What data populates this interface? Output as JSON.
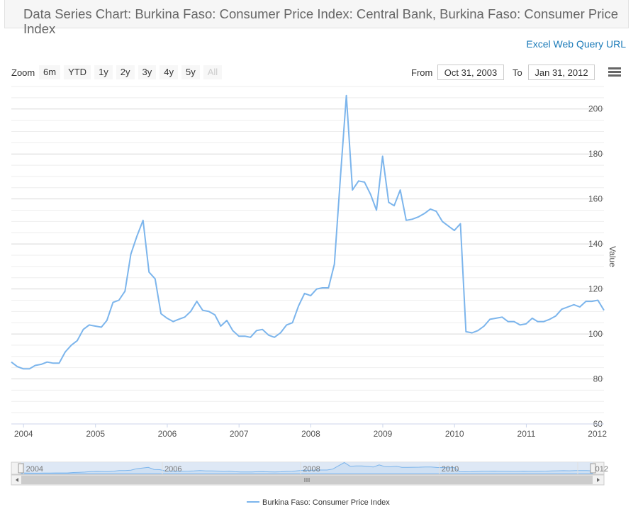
{
  "header": {
    "title": "Data Series Chart: Burkina Faso: Consumer Price Index: Central Bank, Burkina Faso: Consumer Price Index",
    "excel_link": "Excel Web Query URL"
  },
  "toolbar": {
    "zoom_label": "Zoom",
    "zoom_buttons": [
      "6m",
      "YTD",
      "1y",
      "2y",
      "3y",
      "4y",
      "5y",
      "All"
    ],
    "from_label": "From",
    "from_value": "Oct 31, 2003",
    "to_label": "To",
    "to_value": "Jan 31, 2012"
  },
  "colors": {
    "series": "#7cb5ec",
    "grid": "#e6e6e6",
    "navigator_fill": "#dbe7f5"
  },
  "icons": {
    "menu": "hamburger-menu-icon",
    "scroll_left": "left-arrow-icon",
    "scroll_right": "right-arrow-icon",
    "scroll_grip": "grip-icon"
  },
  "chart_data": {
    "type": "line",
    "title": "",
    "xlabel": "",
    "ylabel": "Value",
    "x_range": [
      "2003-10-31",
      "2012-01-31"
    ],
    "ylim": [
      60,
      210
    ],
    "y_ticks": [
      60,
      80,
      100,
      120,
      140,
      160,
      180,
      200
    ],
    "x_tick_labels": [
      "2004",
      "2005",
      "2006",
      "2007",
      "2008",
      "2009",
      "2010",
      "2011",
      "2012"
    ],
    "navigator_labels": [
      "2004",
      "2006",
      "2008",
      "2010",
      "2012"
    ],
    "grid": true,
    "legend_position": "bottom-center",
    "series": [
      {
        "name": "Burkina Faso: Consumer Price Index",
        "x": [
          "2003-10-31",
          "2003-11-30",
          "2003-12-31",
          "2004-01-31",
          "2004-02-29",
          "2004-03-31",
          "2004-04-30",
          "2004-05-31",
          "2004-06-30",
          "2004-07-31",
          "2004-08-31",
          "2004-09-30",
          "2004-10-31",
          "2004-11-30",
          "2004-12-31",
          "2005-01-31",
          "2005-02-28",
          "2005-03-31",
          "2005-04-30",
          "2005-05-31",
          "2005-06-30",
          "2005-07-31",
          "2005-08-31",
          "2005-09-30",
          "2005-10-31",
          "2005-11-30",
          "2005-12-31",
          "2006-01-31",
          "2006-02-28",
          "2006-03-31",
          "2006-04-30",
          "2006-05-31",
          "2006-06-30",
          "2006-07-31",
          "2006-08-31",
          "2006-09-30",
          "2006-10-31",
          "2006-11-30",
          "2006-12-31",
          "2007-01-31",
          "2007-02-28",
          "2007-03-31",
          "2007-04-30",
          "2007-05-31",
          "2007-06-30",
          "2007-07-31",
          "2007-08-31",
          "2007-09-30",
          "2007-10-31",
          "2007-11-30",
          "2007-12-31",
          "2008-01-31",
          "2008-02-29",
          "2008-03-31",
          "2008-04-30",
          "2008-05-31",
          "2008-06-30",
          "2008-07-31",
          "2008-08-31",
          "2008-09-30",
          "2008-10-31",
          "2008-11-30",
          "2008-12-31",
          "2009-01-31",
          "2009-02-28",
          "2009-03-31",
          "2009-04-30",
          "2009-05-31",
          "2009-06-30",
          "2009-07-31",
          "2009-08-31",
          "2009-09-30",
          "2009-10-31",
          "2009-11-30",
          "2009-12-31",
          "2010-01-31",
          "2010-02-28",
          "2010-03-31",
          "2010-04-30",
          "2010-05-31",
          "2010-06-30",
          "2010-07-31",
          "2010-08-31",
          "2010-09-30",
          "2010-10-31",
          "2010-11-30",
          "2010-12-31",
          "2011-01-31",
          "2011-02-28",
          "2011-03-31",
          "2011-04-30",
          "2011-05-31",
          "2011-06-30",
          "2011-07-31",
          "2011-08-31",
          "2011-09-30",
          "2011-10-31",
          "2011-11-30",
          "2011-12-31",
          "2012-01-31"
        ],
        "values": [
          87.5,
          85.5,
          84.5,
          84.5,
          86.0,
          86.5,
          87.5,
          87.0,
          87.0,
          92.0,
          95.0,
          97.0,
          102.0,
          104.0,
          103.5,
          103.0,
          106.0,
          114.0,
          115.0,
          119.0,
          135.5,
          143.5,
          150.5,
          127.5,
          124.5,
          109.0,
          107.0,
          105.5,
          106.5,
          107.5,
          110.0,
          114.5,
          110.5,
          110.0,
          108.5,
          103.5,
          106.0,
          101.5,
          99.0,
          99.0,
          98.5,
          101.5,
          102.0,
          99.5,
          98.5,
          100.5,
          104.0,
          105.0,
          112.5,
          118.0,
          117.0,
          120.0,
          120.5,
          120.5,
          131.0,
          170.0,
          206.0,
          164.0,
          168.0,
          167.5,
          162.0,
          155.0,
          179.0,
          158.5,
          157.0,
          164.0,
          150.5,
          151.0,
          152.0,
          153.5,
          155.5,
          154.5,
          150.0,
          148.0,
          146.0,
          149.0,
          101.0,
          100.5,
          101.5,
          103.5,
          106.5,
          107.0,
          107.5,
          105.5,
          105.5,
          104.0,
          104.5,
          107.0,
          105.5,
          105.5,
          106.5,
          108.0,
          111.0,
          112.0,
          113.0,
          112.0,
          114.5,
          114.5,
          115.0,
          110.5
        ]
      }
    ]
  },
  "legend": {
    "label": "Burkina Faso: Consumer Price Index"
  }
}
